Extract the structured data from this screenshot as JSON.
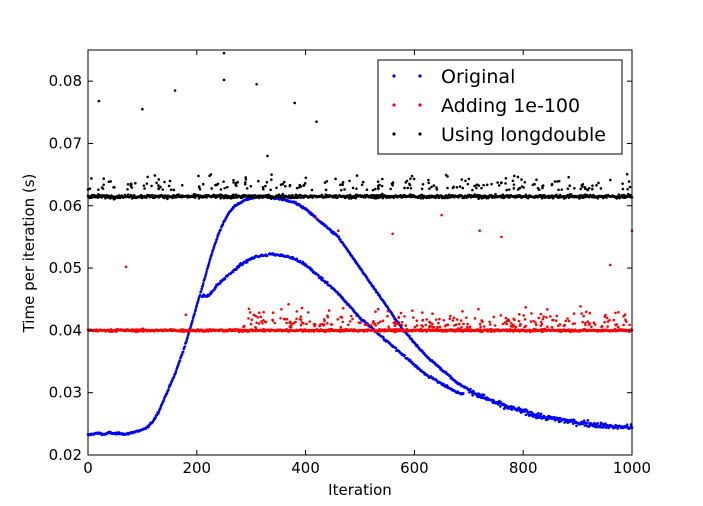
{
  "chart_data": {
    "type": "scatter",
    "title": "",
    "xlabel": "Iteration",
    "ylabel": "Time per iteration (s)",
    "xlim": [
      0,
      1000
    ],
    "ylim": [
      0.02,
      0.085
    ],
    "xticks": [
      0,
      200,
      400,
      600,
      800,
      1000
    ],
    "yticks": [
      0.02,
      0.03,
      0.04,
      0.05,
      0.06,
      0.07,
      0.08
    ],
    "xtick_labels": [
      "0",
      "200",
      "400",
      "600",
      "800",
      "1000"
    ],
    "ytick_labels": [
      "0.02",
      "0.03",
      "0.04",
      "0.05",
      "0.06",
      "0.07",
      "0.08"
    ],
    "legend_position": "top-right",
    "series": [
      {
        "name": "Original",
        "color": "#0000ff",
        "marker": "dot",
        "description": "baseline ~0.0235 until ~100 iterations, then rises to a broad hump; two branches peaking at ~0.061 and ~0.052 near iteration 350-380, then decays to ~0.025 by 1000",
        "points": [
          [
            0,
            0.0232
          ],
          [
            10,
            0.0234
          ],
          [
            20,
            0.0235
          ],
          [
            30,
            0.0233
          ],
          [
            40,
            0.0236
          ],
          [
            50,
            0.0234
          ],
          [
            60,
            0.0235
          ],
          [
            70,
            0.0233
          ],
          [
            80,
            0.0236
          ],
          [
            90,
            0.0238
          ],
          [
            100,
            0.024
          ],
          [
            110,
            0.0245
          ],
          [
            120,
            0.0255
          ],
          [
            130,
            0.027
          ],
          [
            140,
            0.029
          ],
          [
            150,
            0.031
          ],
          [
            160,
            0.033
          ],
          [
            170,
            0.0355
          ],
          [
            180,
            0.038
          ],
          [
            190,
            0.041
          ],
          [
            200,
            0.044
          ],
          [
            210,
            0.047
          ],
          [
            220,
            0.05
          ],
          [
            230,
            0.053
          ],
          [
            240,
            0.0555
          ],
          [
            250,
            0.0575
          ],
          [
            260,
            0.059
          ],
          [
            270,
            0.06
          ],
          [
            280,
            0.0605
          ],
          [
            290,
            0.061
          ],
          [
            300,
            0.0612
          ],
          [
            320,
            0.0615
          ],
          [
            340,
            0.0613
          ],
          [
            360,
            0.061
          ],
          [
            380,
            0.0605
          ],
          [
            400,
            0.0595
          ],
          [
            420,
            0.058
          ],
          [
            440,
            0.0565
          ],
          [
            460,
            0.055
          ],
          [
            480,
            0.0525
          ],
          [
            500,
            0.05
          ],
          [
            520,
            0.0475
          ],
          [
            540,
            0.045
          ],
          [
            560,
            0.0425
          ],
          [
            580,
            0.04
          ],
          [
            600,
            0.038
          ],
          [
            620,
            0.036
          ],
          [
            640,
            0.0345
          ],
          [
            660,
            0.033
          ],
          [
            680,
            0.0315
          ],
          [
            700,
            0.0305
          ],
          [
            720,
            0.0295
          ],
          [
            740,
            0.0288
          ],
          [
            760,
            0.028
          ],
          [
            780,
            0.0275
          ],
          [
            800,
            0.027
          ],
          [
            820,
            0.0265
          ],
          [
            840,
            0.026
          ],
          [
            860,
            0.0258
          ],
          [
            880,
            0.0255
          ],
          [
            900,
            0.0252
          ],
          [
            920,
            0.025
          ],
          [
            940,
            0.0248
          ],
          [
            960,
            0.0246
          ],
          [
            980,
            0.0245
          ],
          [
            1000,
            0.0244
          ],
          [
            220,
            0.0455
          ],
          [
            240,
            0.0475
          ],
          [
            260,
            0.049
          ],
          [
            280,
            0.0505
          ],
          [
            300,
            0.0515
          ],
          [
            320,
            0.052
          ],
          [
            340,
            0.0522
          ],
          [
            360,
            0.052
          ],
          [
            380,
            0.0515
          ],
          [
            400,
            0.0505
          ],
          [
            420,
            0.049
          ],
          [
            440,
            0.0475
          ],
          [
            460,
            0.046
          ],
          [
            480,
            0.044
          ],
          [
            500,
            0.042
          ],
          [
            520,
            0.0405
          ],
          [
            540,
            0.039
          ],
          [
            560,
            0.0375
          ],
          [
            580,
            0.036
          ],
          [
            600,
            0.0345
          ],
          [
            620,
            0.033
          ],
          [
            640,
            0.032
          ],
          [
            660,
            0.031
          ],
          [
            680,
            0.03
          ]
        ]
      },
      {
        "name": "Adding 1e-100",
        "color": "#ff0000",
        "marker": "dot",
        "description": "flat band near 0.040 across all iterations with scattered outliers up to ~0.058",
        "points": [
          [
            0,
            0.0398
          ],
          [
            50,
            0.0401
          ],
          [
            100,
            0.04
          ],
          [
            150,
            0.0399
          ],
          [
            200,
            0.0402
          ],
          [
            250,
            0.04
          ],
          [
            300,
            0.0401
          ],
          [
            350,
            0.0399
          ],
          [
            400,
            0.0402
          ],
          [
            450,
            0.04
          ],
          [
            500,
            0.0401
          ],
          [
            550,
            0.0399
          ],
          [
            600,
            0.0402
          ],
          [
            650,
            0.04
          ],
          [
            700,
            0.0401
          ],
          [
            750,
            0.0399
          ],
          [
            800,
            0.0402
          ],
          [
            850,
            0.04
          ],
          [
            900,
            0.0401
          ],
          [
            950,
            0.0399
          ],
          [
            1000,
            0.04
          ],
          [
            70,
            0.0502
          ],
          [
            180,
            0.0425
          ],
          [
            420,
            0.058
          ],
          [
            460,
            0.056
          ],
          [
            560,
            0.0555
          ],
          [
            650,
            0.0585
          ],
          [
            720,
            0.056
          ],
          [
            760,
            0.055
          ],
          [
            960,
            0.0505
          ],
          [
            1000,
            0.056
          ]
        ]
      },
      {
        "name": "Using longdouble",
        "color": "#000000",
        "marker": "dot",
        "description": "flat band near 0.0615 with upper outliers up to ~0.085",
        "points": [
          [
            0,
            0.0615
          ],
          [
            50,
            0.0617
          ],
          [
            100,
            0.0614
          ],
          [
            150,
            0.0616
          ],
          [
            200,
            0.0615
          ],
          [
            250,
            0.0618
          ],
          [
            300,
            0.0616
          ],
          [
            350,
            0.0619
          ],
          [
            400,
            0.0617
          ],
          [
            450,
            0.0615
          ],
          [
            500,
            0.0616
          ],
          [
            550,
            0.0614
          ],
          [
            600,
            0.0615
          ],
          [
            650,
            0.0613
          ],
          [
            700,
            0.0614
          ],
          [
            750,
            0.0616
          ],
          [
            800,
            0.0614
          ],
          [
            850,
            0.0615
          ],
          [
            900,
            0.0614
          ],
          [
            950,
            0.0616
          ],
          [
            1000,
            0.0617
          ],
          [
            20,
            0.0768
          ],
          [
            100,
            0.0755
          ],
          [
            160,
            0.0785
          ],
          [
            250,
            0.0845
          ],
          [
            250,
            0.0802
          ],
          [
            310,
            0.0795
          ],
          [
            380,
            0.0765
          ],
          [
            420,
            0.0735
          ],
          [
            330,
            0.068
          ]
        ]
      }
    ]
  }
}
